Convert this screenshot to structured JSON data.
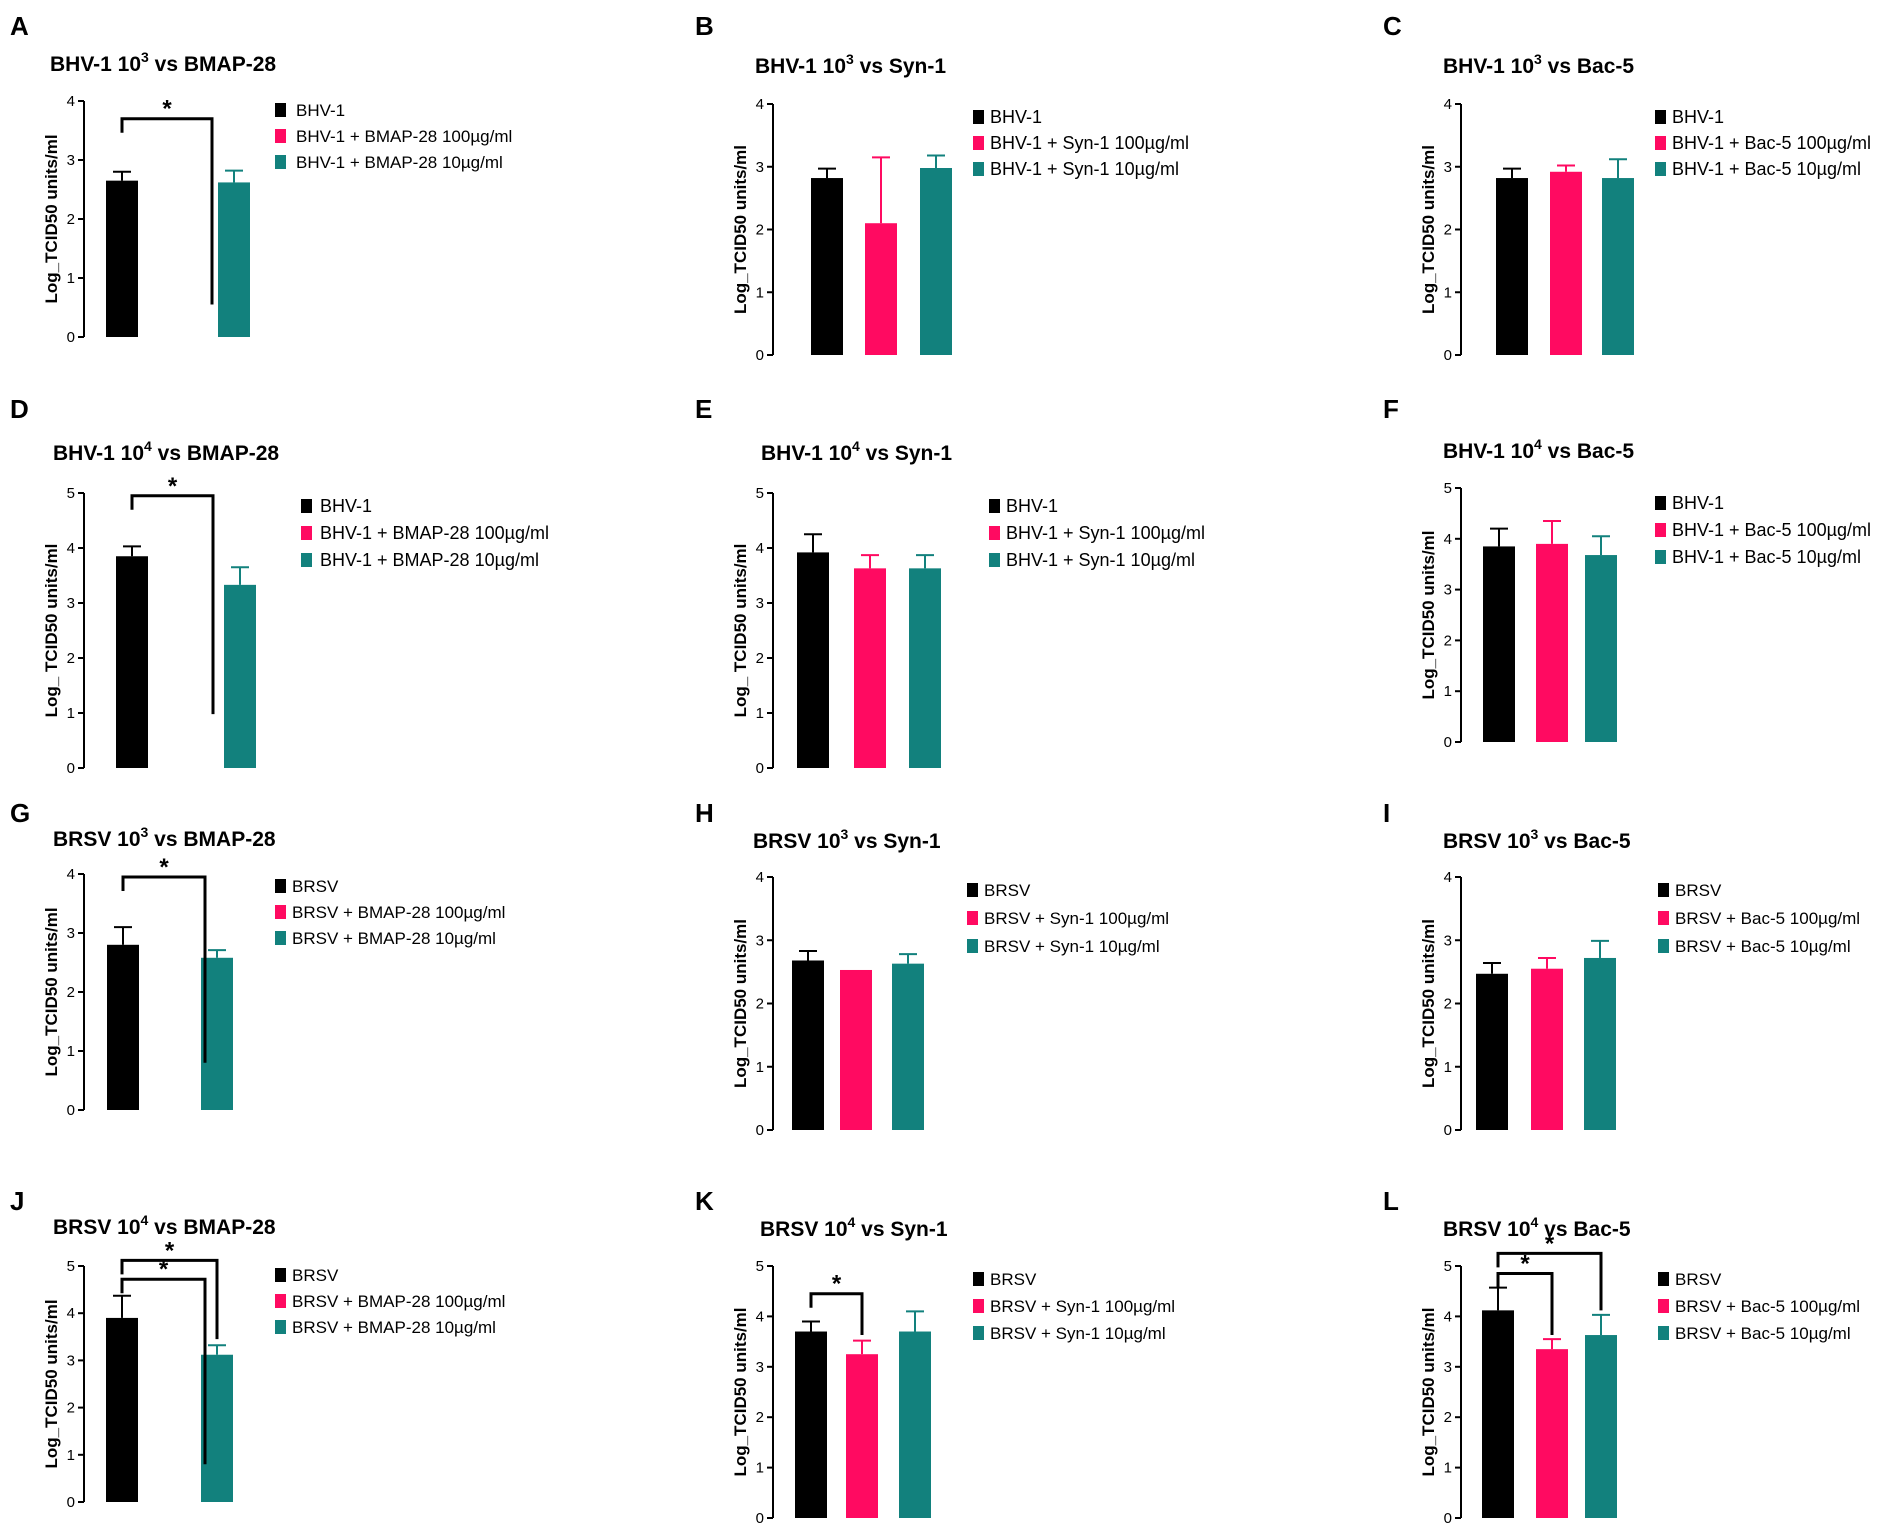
{
  "colors": {
    "bhv": "#000000",
    "p100": "#ff0a61",
    "p10": "#12817d",
    "axis": "#000000"
  },
  "common": {
    "ylabel": "Log_TCID50 units/ml",
    "ylabel_alt": "Log_ TCID50 units/ml",
    "star": "*"
  },
  "chart_data": [
    {
      "panel": "A",
      "type": "bar",
      "title_pre": "BHV-1 10",
      "title_sup": "3",
      "title_post": " vs BMAP-28",
      "ylabel": "Log_TCID50 units/ml",
      "ylim": [
        0,
        4
      ],
      "yticks": [
        "0",
        "1",
        "2",
        "3",
        "4"
      ],
      "series": [
        {
          "name": "BHV-1",
          "value": 2.65,
          "err": 0.15
        },
        {
          "name": "BHV-1 + BMAP-28 100µg/ml",
          "value": 0,
          "err": 0
        },
        {
          "name": "BHV-1 + BMAP-28 10µg/ml",
          "value": 2.62,
          "err": 0.2
        }
      ],
      "annotations": [
        {
          "bars": [
            0,
            1
          ],
          "label": "*",
          "level": 3.7,
          "drop": 0.55
        }
      ]
    },
    {
      "panel": "B",
      "type": "bar",
      "title_pre": "BHV-1 10",
      "title_sup": "3",
      "title_post": " vs Syn-1",
      "ylabel": "Log_TCID50 units/ml",
      "ylim": [
        0,
        4
      ],
      "yticks": [
        "0",
        "1",
        "2",
        "3",
        "4"
      ],
      "series": [
        {
          "name": "BHV-1",
          "value": 2.82,
          "err": 0.15
        },
        {
          "name": "BHV-1 + Syn-1 100µg/ml",
          "value": 2.1,
          "err": 1.05
        },
        {
          "name": "BHV-1 + Syn-1 10µg/ml",
          "value": 2.98,
          "err": 0.2
        }
      ],
      "annotations": []
    },
    {
      "panel": "C",
      "type": "bar",
      "title_pre": "BHV-1 10",
      "title_sup": "3",
      "title_post": " vs Bac-5",
      "ylabel": "Log_TCID50 units/ml",
      "ylim": [
        0,
        4
      ],
      "yticks": [
        "0",
        "1",
        "2",
        "3",
        "4"
      ],
      "series": [
        {
          "name": "BHV-1",
          "value": 2.82,
          "err": 0.15
        },
        {
          "name": "BHV-1 + Bac-5 100µg/ml",
          "value": 2.92,
          "err": 0.1
        },
        {
          "name": "BHV-1 + Bac-5 10µg/ml",
          "value": 2.82,
          "err": 0.3
        }
      ],
      "annotations": []
    },
    {
      "panel": "D",
      "type": "bar",
      "title_pre": "BHV-1 10",
      "title_sup": "4",
      "title_post": " vs BMAP-28",
      "ylabel": "Log_ TCID50 units/ml",
      "ylim": [
        0,
        5
      ],
      "yticks": [
        "0",
        "1",
        "2",
        "3",
        "4",
        "5"
      ],
      "series": [
        {
          "name": "BHV-1",
          "value": 3.85,
          "err": 0.18
        },
        {
          "name": "BHV-1 + BMAP-28 100µg/ml",
          "value": 0,
          "err": 0
        },
        {
          "name": "BHV-1 + BMAP-28 10µg/ml",
          "value": 3.33,
          "err": 0.32
        }
      ],
      "annotations": [
        {
          "bars": [
            0,
            1
          ],
          "label": "*",
          "level": 4.95,
          "drop": 0.98
        }
      ]
    },
    {
      "panel": "E",
      "type": "bar",
      "title_pre": "BHV-1 10",
      "title_sup": "4",
      "title_post": " vs Syn-1",
      "ylabel": "Log_ TCID50 units/ml",
      "ylim": [
        0,
        5
      ],
      "yticks": [
        "0",
        "1",
        "2",
        "3",
        "4",
        "5"
      ],
      "series": [
        {
          "name": "BHV-1",
          "value": 3.92,
          "err": 0.33
        },
        {
          "name": "BHV-1 + Syn-1 100µg/ml",
          "value": 3.63,
          "err": 0.24
        },
        {
          "name": "BHV-1 + Syn-1 10µg/ml",
          "value": 3.63,
          "err": 0.24
        }
      ],
      "annotations": []
    },
    {
      "panel": "F",
      "type": "bar",
      "title_pre": "BHV-1 10",
      "title_sup": "4",
      "title_post": " vs Bac-5",
      "ylabel": "Log_TCID50 units/ml",
      "ylim": [
        0,
        5
      ],
      "yticks": [
        "0",
        "1",
        "2",
        "3",
        "4",
        "5"
      ],
      "series": [
        {
          "name": "BHV-1",
          "value": 3.85,
          "err": 0.35
        },
        {
          "name": "BHV-1 + Bac-5 100µg/ml",
          "value": 3.9,
          "err": 0.45
        },
        {
          "name": "BHV-1 + Bac-5 10µg/ml",
          "value": 3.68,
          "err": 0.37
        }
      ],
      "annotations": []
    },
    {
      "panel": "G",
      "type": "bar",
      "title_pre": "BRSV 10",
      "title_sup": "3",
      "title_post": " vs BMAP-28",
      "ylabel": "Log_TCID50 units/ml",
      "ylim": [
        0,
        4
      ],
      "yticks": [
        "0",
        "1",
        "2",
        "3",
        "4"
      ],
      "series": [
        {
          "name": "BRSV",
          "value": 2.8,
          "err": 0.3
        },
        {
          "name": "BRSV + BMAP-28 100µg/ml",
          "value": 0,
          "err": 0
        },
        {
          "name": "BRSV + BMAP-28 10µg/ml",
          "value": 2.58,
          "err": 0.13
        }
      ],
      "annotations": [
        {
          "bars": [
            0,
            1
          ],
          "label": "*",
          "level": 3.95,
          "drop": 0.8
        }
      ]
    },
    {
      "panel": "H",
      "type": "bar",
      "title_pre": "BRSV 10",
      "title_sup": "3",
      "title_post": " vs Syn-1",
      "ylabel": "Log_TCID50 units/ml",
      "ylim": [
        0,
        4
      ],
      "yticks": [
        "0",
        "1",
        "2",
        "3",
        "4"
      ],
      "series": [
        {
          "name": "BRSV",
          "value": 2.68,
          "err": 0.15
        },
        {
          "name": "BRSV + Syn-1 100µg/ml",
          "value": 2.53,
          "err": 0
        },
        {
          "name": "BRSV + Syn-1 10µg/ml",
          "value": 2.63,
          "err": 0.15
        }
      ],
      "annotations": []
    },
    {
      "panel": "I",
      "type": "bar",
      "title_pre": "BRSV 10",
      "title_sup": "3",
      "title_post": " vs Bac-5",
      "ylabel": "Log_TCID50 units/ml",
      "ylim": [
        0,
        4
      ],
      "yticks": [
        "0",
        "1",
        "2",
        "3",
        "4"
      ],
      "series": [
        {
          "name": "BRSV",
          "value": 2.47,
          "err": 0.17
        },
        {
          "name": "BRSV + Bac-5 100µg/ml",
          "value": 2.55,
          "err": 0.17
        },
        {
          "name": "BRSV + Bac-5 10µg/ml",
          "value": 2.72,
          "err": 0.27
        }
      ],
      "annotations": []
    },
    {
      "panel": "J",
      "type": "bar",
      "title_pre": "BRSV 10",
      "title_sup": "4",
      "title_post": " vs BMAP-28",
      "ylabel": "Log_TCID50 units/ml",
      "ylim": [
        0,
        5
      ],
      "yticks": [
        "0",
        "1",
        "2",
        "3",
        "4",
        "5"
      ],
      "series": [
        {
          "name": "BRSV",
          "value": 3.9,
          "err": 0.47
        },
        {
          "name": "BRSV + BMAP-28 100µg/ml",
          "value": 0,
          "err": 0
        },
        {
          "name": "BRSV + BMAP-28 10µg/ml",
          "value": 3.12,
          "err": 0.2
        }
      ],
      "annotations": [
        {
          "bars": [
            0,
            1
          ],
          "label": "*",
          "level": 4.72,
          "drop": 0.8
        },
        {
          "bars": [
            0,
            2
          ],
          "label": "*",
          "level": 5.12,
          "drop": 3.45
        }
      ]
    },
    {
      "panel": "K",
      "type": "bar",
      "title_pre": "BRSV 10",
      "title_sup": "4",
      "title_post": " vs Syn-1",
      "ylabel": "Log_TCID50 units/ml",
      "ylim": [
        0,
        5
      ],
      "yticks": [
        "0",
        "1",
        "2",
        "3",
        "4",
        "5"
      ],
      "series": [
        {
          "name": "BRSV",
          "value": 3.7,
          "err": 0.2
        },
        {
          "name": "BRSV + Syn-1 100µg/ml",
          "value": 3.25,
          "err": 0.27
        },
        {
          "name": "BRSV + Syn-1 10µg/ml",
          "value": 3.7,
          "err": 0.4
        }
      ],
      "annotations": [
        {
          "bars": [
            0,
            1
          ],
          "label": "*",
          "level": 4.45,
          "drop": 3.63
        }
      ]
    },
    {
      "panel": "L",
      "type": "bar",
      "title_pre": "BRSV 10",
      "title_sup": "4",
      "title_post": " vs Bac-5",
      "ylabel": "Log_TCID50 units/ml",
      "ylim": [
        0,
        5
      ],
      "yticks": [
        "0",
        "1",
        "2",
        "3",
        "4",
        "5"
      ],
      "series": [
        {
          "name": "BRSV",
          "value": 4.12,
          "err": 0.45
        },
        {
          "name": "BRSV + Bac-5 100µg/ml",
          "value": 3.35,
          "err": 0.2
        },
        {
          "name": "BRSV + Bac-5 10µg/ml",
          "value": 3.63,
          "err": 0.4
        }
      ],
      "annotations": [
        {
          "bars": [
            0,
            1
          ],
          "label": "*",
          "level": 4.85,
          "drop": 3.63
        },
        {
          "bars": [
            0,
            2
          ],
          "label": "*",
          "level": 5.25,
          "drop": 4.12
        }
      ]
    }
  ]
}
